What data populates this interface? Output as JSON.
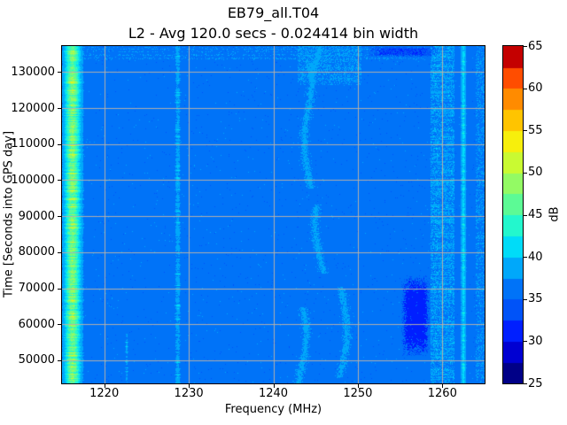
{
  "figure": {
    "background": "#ffffff"
  },
  "chart_data": {
    "type": "heatmap",
    "title": "EB79_all.T04",
    "subtitle": "L2 - Avg 120.0 secs - 0.024414 bin width",
    "xlabel": "Frequency (MHz)",
    "ylabel": "Time [Seconds into GPS day]",
    "colorbar_label": "dB",
    "x_range": [
      1215,
      1265
    ],
    "y_range": [
      43600,
      137200
    ],
    "colorbar_range": [
      25,
      65
    ],
    "colorbar_band_width_db": 2.5,
    "x_ticks": [
      1220,
      1230,
      1240,
      1250,
      1260
    ],
    "y_ticks": [
      50000,
      60000,
      70000,
      80000,
      90000,
      100000,
      110000,
      120000,
      130000
    ],
    "colorbar_ticks": [
      25,
      30,
      35,
      40,
      45,
      50,
      55,
      60,
      65
    ],
    "grid": true,
    "grid_color": "rgba(185,177,168,0.95)",
    "background_level_db": 36,
    "palette": [
      "#000087",
      "#0000d2",
      "#001fff",
      "#0053f8",
      "#0073f8",
      "#00a8fa",
      "#00dcf8",
      "#23f7cd",
      "#5cfa95",
      "#93fa64",
      "#c9fa32",
      "#f7ef0c",
      "#ffc400",
      "#ff8b00",
      "#ff4d00",
      "#c40000"
    ],
    "features": [
      {
        "type": "emission_line",
        "name": "broad-emission-1216",
        "f_center": 1216.2,
        "sigma_mhz": 0.62,
        "amp_db": [
          8.5,
          14.5
        ],
        "edge_noise": 1.6
      },
      {
        "type": "emission_line",
        "name": "narrow-line-1228-6",
        "f_center": 1228.65,
        "sigma_mhz": 0.22,
        "amp_db": [
          1.4,
          3.8
        ],
        "edge_noise": 0.8
      },
      {
        "type": "emission_line",
        "name": "faint-line-1222-6",
        "f_center": 1222.6,
        "sigma_mhz": 0.14,
        "amp_db": [
          1.0,
          2.4
        ],
        "t_range": [
          43600,
          57500
        ],
        "edge_noise": 0.5
      },
      {
        "type": "emission_line",
        "name": "solid-cyan-line-1262-4",
        "f_center": 1262.45,
        "sigma_mhz": 0.2,
        "amp_db": [
          3.8,
          5.6
        ],
        "edge_noise": 0.7
      },
      {
        "type": "drift_traces",
        "name": "wandering-carriers-1244-1248",
        "f_centers": [
          1243.7,
          1245.25,
          1246.8,
          1248.35
        ],
        "wander_mhz": 1.0,
        "sigma_mhz": 0.3,
        "amp_db": [
          1.8,
          3.4
        ],
        "intermittency": 0.62
      },
      {
        "type": "speckle_band",
        "name": "noisy-band-1260",
        "f_range": [
          1258.6,
          1261.4
        ],
        "density": 0.5,
        "amp_db": [
          1.6,
          4.2
        ]
      },
      {
        "type": "speckle_band",
        "name": "edge-speckle-1264",
        "f_range": [
          1263.9,
          1265.0
        ],
        "density": 0.3,
        "amp_db": [
          1.4,
          2.6
        ]
      },
      {
        "type": "speckle_band",
        "name": "patch-1244-top",
        "f_range": [
          1242.8,
          1250.4
        ],
        "t_range": [
          126500,
          137200
        ],
        "density": 0.4,
        "amp_db": [
          1.6,
          3.0
        ]
      },
      {
        "type": "h_speckle",
        "name": "top-rows-interference",
        "f_range": [
          1217.4,
          1258.0
        ],
        "t_range": [
          133300,
          137200
        ],
        "density": 0.32,
        "amp_db": [
          1.6,
          3.2
        ]
      },
      {
        "type": "dip_blob",
        "name": "dark-blob-1256-low",
        "f_range": [
          1255.1,
          1258.5
        ],
        "t_range": [
          51000,
          73800
        ],
        "depth_db": 4.8
      },
      {
        "type": "dip_blob",
        "name": "dark-patch-top-right",
        "f_range": [
          1251.0,
          1259.4
        ],
        "t_range": [
          134300,
          137200
        ],
        "depth_db": 3.4
      }
    ]
  }
}
